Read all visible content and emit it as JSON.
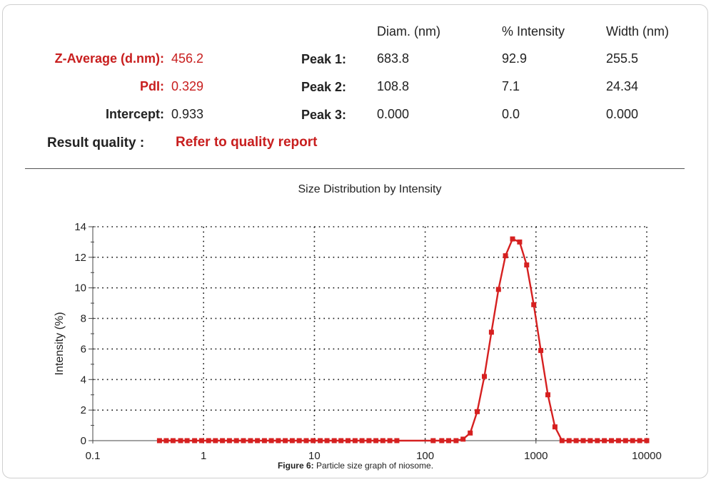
{
  "summary": {
    "z_average_label": "Z-Average (d.nm):",
    "z_average_value": "456.2",
    "pdi_label": "PdI:",
    "pdi_value": "0.329",
    "intercept_label": "Intercept:",
    "intercept_value": "0.933",
    "result_quality_label": "Result quality :",
    "result_quality_value": "Refer to quality report"
  },
  "peaks_table": {
    "headers": [
      "Diam. (nm)",
      "% Intensity",
      "Width (nm)"
    ],
    "rows": [
      {
        "label": "Peak 1:",
        "diam": "683.8",
        "intensity": "92.9",
        "width": "255.5"
      },
      {
        "label": "Peak 2:",
        "diam": "108.8",
        "intensity": "7.1",
        "width": "24.34"
      },
      {
        "label": "Peak 3:",
        "diam": "0.000",
        "intensity": "0.0",
        "width": "0.000"
      }
    ]
  },
  "chart_data": {
    "type": "line",
    "title": "Size Distribution by Intensity",
    "xlabel": "",
    "ylabel": "Intensity (%)",
    "xscale": "log",
    "xlim": [
      0.1,
      10000
    ],
    "ylim": [
      0,
      14
    ],
    "x_ticks": [
      0.1,
      1,
      10,
      100,
      1000,
      10000
    ],
    "x_tick_labels": [
      "0.1",
      "1",
      "10",
      "100",
      "1000",
      "10000"
    ],
    "y_ticks": [
      0,
      2,
      4,
      6,
      8,
      10,
      12,
      14
    ],
    "y_tick_labels": [
      "0",
      "2",
      "4",
      "6",
      "8",
      "10",
      "12",
      "14"
    ],
    "grid": true,
    "color": "#d62020",
    "series": [
      {
        "x": [
          0.4,
          0.46,
          0.53,
          0.62,
          0.71,
          0.83,
          0.96,
          1.11,
          1.28,
          1.48,
          1.71,
          1.98,
          2.29,
          2.65,
          3.06,
          3.54,
          4.09,
          4.73,
          5.46,
          6.31,
          7.3,
          8.44,
          9.75,
          11.3,
          13.0,
          15.1,
          17.4,
          20.1,
          23.3,
          26.9,
          31.1,
          35.9,
          41.5,
          48.0,
          55.5,
          118,
          141,
          163,
          190,
          220,
          255,
          295,
          342,
          396,
          459,
          531,
          615,
          712,
          825,
          955,
          1106,
          1281,
          1484,
          1718,
          1990,
          2305,
          2669,
          3091,
          3580,
          4145,
          4801,
          5560,
          6440,
          7460,
          8640,
          10000
        ],
        "y": [
          0,
          0,
          0,
          0,
          0,
          0,
          0,
          0,
          0,
          0,
          0,
          0,
          0,
          0,
          0,
          0,
          0,
          0,
          0,
          0,
          0,
          0,
          0,
          0,
          0,
          0,
          0,
          0,
          0,
          0,
          0,
          0,
          0,
          0,
          0,
          0,
          0,
          0,
          0,
          0.1,
          0.5,
          1.9,
          4.2,
          7.1,
          9.9,
          12.1,
          13.2,
          13.0,
          11.5,
          8.9,
          5.9,
          3.0,
          0.9,
          0,
          0,
          0,
          0,
          0,
          0,
          0,
          0,
          0,
          0,
          0,
          0,
          0
        ]
      }
    ]
  },
  "caption": {
    "prefix": "Figure 6:",
    "text": " Particle size graph of niosome."
  }
}
